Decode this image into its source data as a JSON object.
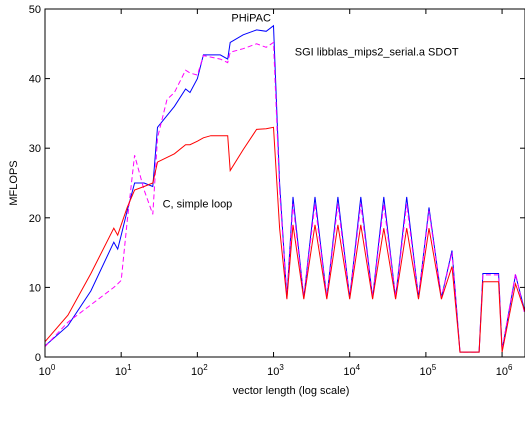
{
  "chart_data": {
    "type": "line",
    "title": "",
    "xlabel": "vector length (log scale)",
    "ylabel": "MFLOPS",
    "xscale": "log",
    "xlim": [
      1,
      2000000
    ],
    "ylim": [
      0,
      50
    ],
    "grid": false,
    "y_ticks": [
      0,
      10,
      20,
      30,
      40,
      50
    ],
    "x_ticks": [
      {
        "value": 1,
        "base": "10",
        "exp": "0"
      },
      {
        "value": 10,
        "base": "10",
        "exp": "1"
      },
      {
        "value": 100,
        "base": "10",
        "exp": "2"
      },
      {
        "value": 1000,
        "base": "10",
        "exp": "3"
      },
      {
        "value": 10000,
        "base": "10",
        "exp": "4"
      },
      {
        "value": 100000,
        "base": "10",
        "exp": "5"
      },
      {
        "value": 1000000,
        "base": "10",
        "exp": "6"
      }
    ],
    "series": [
      {
        "name": "PHiPAC",
        "color": "#0000ff",
        "dash": "solid",
        "points": [
          [
            1,
            1.6
          ],
          [
            2,
            4.5
          ],
          [
            4,
            9.5
          ],
          [
            8,
            16.5
          ],
          [
            9,
            15.5
          ],
          [
            10,
            17.5
          ],
          [
            12,
            21
          ],
          [
            15,
            25
          ],
          [
            20,
            25
          ],
          [
            26,
            24.5
          ],
          [
            30,
            33
          ],
          [
            50,
            36
          ],
          [
            70,
            38.5
          ],
          [
            80,
            38
          ],
          [
            100,
            40
          ],
          [
            120,
            43.4
          ],
          [
            200,
            43.4
          ],
          [
            250,
            42.8
          ],
          [
            270,
            45.2
          ],
          [
            400,
            46.3
          ],
          [
            600,
            47
          ],
          [
            800,
            46.8
          ],
          [
            1000,
            47.6
          ],
          [
            1200,
            25
          ],
          [
            1500,
            8.5
          ],
          [
            1800,
            23
          ],
          [
            2500,
            8.5
          ],
          [
            3500,
            23
          ],
          [
            5000,
            8.5
          ],
          [
            7000,
            23
          ],
          [
            10000,
            8.5
          ],
          [
            14000,
            23
          ],
          [
            20000,
            8.5
          ],
          [
            28000,
            23
          ],
          [
            40000,
            8.5
          ],
          [
            56000,
            23
          ],
          [
            80000,
            8.5
          ],
          [
            110000,
            21.5
          ],
          [
            160000,
            8.5
          ],
          [
            220000,
            15.3
          ],
          [
            280000,
            0.7
          ],
          [
            500000,
            0.7
          ],
          [
            560000,
            12
          ],
          [
            900000,
            12
          ],
          [
            1000000,
            1
          ],
          [
            1500000,
            11.8
          ],
          [
            2000000,
            6.5
          ]
        ]
      },
      {
        "name": "SGI libblas_mips2_serial.a SDOT",
        "color": "#ff00ff",
        "dash": "dashed",
        "points": [
          [
            1,
            1.5
          ],
          [
            2,
            5
          ],
          [
            4,
            7.5
          ],
          [
            8,
            10
          ],
          [
            9,
            10.5
          ],
          [
            10,
            11
          ],
          [
            12,
            19.5
          ],
          [
            15,
            29
          ],
          [
            20,
            24
          ],
          [
            26,
            20.5
          ],
          [
            30,
            31.5
          ],
          [
            40,
            37
          ],
          [
            50,
            38
          ],
          [
            70,
            41.2
          ],
          [
            80,
            40.8
          ],
          [
            100,
            40.5
          ],
          [
            120,
            43.3
          ],
          [
            200,
            42.8
          ],
          [
            250,
            42.3
          ],
          [
            270,
            43.8
          ],
          [
            400,
            44.3
          ],
          [
            600,
            45
          ],
          [
            800,
            44.5
          ],
          [
            1000,
            45.2
          ],
          [
            1200,
            24
          ],
          [
            1500,
            8.5
          ],
          [
            1800,
            22
          ],
          [
            2500,
            8.5
          ],
          [
            3500,
            22
          ],
          [
            5000,
            8.5
          ],
          [
            7000,
            22
          ],
          [
            10000,
            8.5
          ],
          [
            14000,
            22
          ],
          [
            20000,
            8.5
          ],
          [
            28000,
            22
          ],
          [
            40000,
            8.5
          ],
          [
            56000,
            22
          ],
          [
            80000,
            8.5
          ],
          [
            110000,
            21
          ],
          [
            160000,
            8.5
          ],
          [
            220000,
            15
          ],
          [
            280000,
            0.7
          ],
          [
            500000,
            0.7
          ],
          [
            560000,
            11.8
          ],
          [
            900000,
            11.8
          ],
          [
            1000000,
            1
          ],
          [
            1500000,
            12
          ],
          [
            2000000,
            6
          ]
        ]
      },
      {
        "name": "C, simple loop",
        "color": "#ff0000",
        "dash": "solid",
        "points": [
          [
            1,
            2.2
          ],
          [
            2,
            6
          ],
          [
            4,
            12
          ],
          [
            8,
            18.5
          ],
          [
            9,
            17.5
          ],
          [
            10,
            19
          ],
          [
            12,
            21.5
          ],
          [
            15,
            24
          ],
          [
            20,
            24.5
          ],
          [
            26,
            25
          ],
          [
            30,
            28
          ],
          [
            50,
            29.2
          ],
          [
            70,
            30.5
          ],
          [
            80,
            30.5
          ],
          [
            100,
            31
          ],
          [
            120,
            31.5
          ],
          [
            150,
            31.8
          ],
          [
            200,
            31.8
          ],
          [
            250,
            31.8
          ],
          [
            270,
            26.8
          ],
          [
            400,
            29.8
          ],
          [
            600,
            32.7
          ],
          [
            800,
            32.8
          ],
          [
            1000,
            33
          ],
          [
            1200,
            18.5
          ],
          [
            1500,
            8.3
          ],
          [
            1800,
            19
          ],
          [
            2500,
            8.3
          ],
          [
            3500,
            19
          ],
          [
            5000,
            8.3
          ],
          [
            7000,
            19
          ],
          [
            10000,
            8.3
          ],
          [
            14000,
            19
          ],
          [
            20000,
            8.3
          ],
          [
            28000,
            18.5
          ],
          [
            40000,
            8.3
          ],
          [
            56000,
            18.5
          ],
          [
            80000,
            8.3
          ],
          [
            110000,
            18.5
          ],
          [
            160000,
            8.3
          ],
          [
            220000,
            13
          ],
          [
            280000,
            0.7
          ],
          [
            500000,
            0.7
          ],
          [
            560000,
            10.8
          ],
          [
            900000,
            10.8
          ],
          [
            1000000,
            0.7
          ],
          [
            1500000,
            10.5
          ],
          [
            2000000,
            6.5
          ]
        ]
      }
    ],
    "annotations": [
      {
        "text": "PHiPAC",
        "x": 280,
        "y": 48.2
      },
      {
        "text": "SGI libblas_mips2_serial.a SDOT",
        "x": 1900,
        "y": 43.3
      },
      {
        "text": "C, simple loop",
        "x": 35,
        "y": 21.5
      }
    ]
  }
}
